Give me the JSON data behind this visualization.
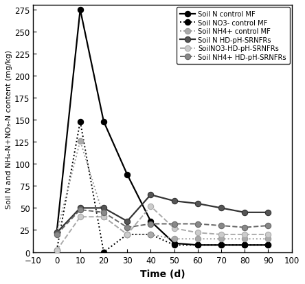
{
  "time_points": [
    0,
    10,
    20,
    30,
    40,
    50,
    60,
    70,
    80,
    90
  ],
  "series": {
    "soil_N_control_MF": {
      "label": "Soil N control MF",
      "color": "#000000",
      "linestyle": "-",
      "marker": "o",
      "markerfacecolor": "#000000",
      "markeredgecolor": "#000000",
      "linewidth": 1.6,
      "markersize": 6,
      "data": [
        22,
        275,
        148,
        88,
        35,
        10,
        8,
        8,
        8,
        8
      ]
    },
    "soil_NO3_control_MF": {
      "label": "Soil NO3- control MF",
      "color": "#000000",
      "linestyle": ":",
      "marker": "o",
      "markerfacecolor": "#000000",
      "markeredgecolor": "#000000",
      "linewidth": 1.4,
      "markersize": 6,
      "data": [
        2,
        148,
        0,
        20,
        20,
        8,
        8,
        8,
        8,
        8
      ]
    },
    "soil_NH4_control_MF": {
      "label": "Soil NH4+ control MF",
      "color": "#999999",
      "linestyle": ":",
      "marker": "o",
      "markerfacecolor": "#aaaaaa",
      "markeredgecolor": "#999999",
      "linewidth": 1.4,
      "markersize": 6,
      "data": [
        22,
        126,
        40,
        20,
        20,
        15,
        15,
        15,
        15,
        15
      ]
    },
    "soil_N_HD_pH_SRNFRs": {
      "label": "Soil N HD-pH-SRNFRs",
      "color": "#333333",
      "linestyle": "-",
      "marker": "o",
      "markerfacecolor": "#555555",
      "markeredgecolor": "#333333",
      "linewidth": 1.6,
      "markersize": 6,
      "data": [
        22,
        50,
        50,
        35,
        65,
        58,
        55,
        50,
        45,
        45
      ]
    },
    "soil_NO3_HD_pH_SRNFRs": {
      "label": "SoilNO3-HD-pH-SRNFRs",
      "color": "#aaaaaa",
      "linestyle": "--",
      "marker": "o",
      "markerfacecolor": "#cccccc",
      "markeredgecolor": "#aaaaaa",
      "linewidth": 1.4,
      "markersize": 6,
      "data": [
        2,
        40,
        40,
        20,
        52,
        27,
        22,
        20,
        20,
        20
      ]
    },
    "soil_NH4_HD_pH_SRNFRs": {
      "label": "Soil NH4+ HD-pH-SRNFRs",
      "color": "#666666",
      "linestyle": "--",
      "marker": "o",
      "markerfacecolor": "#888888",
      "markeredgecolor": "#666666",
      "linewidth": 1.4,
      "markersize": 6,
      "data": [
        20,
        48,
        45,
        28,
        32,
        32,
        32,
        30,
        28,
        30
      ]
    }
  },
  "xlim": [
    -10,
    100
  ],
  "ylim": [
    0,
    280
  ],
  "xticks": [
    -10,
    0,
    10,
    20,
    30,
    40,
    50,
    60,
    70,
    80,
    90,
    100
  ],
  "yticks": [
    0,
    25,
    50,
    75,
    100,
    125,
    150,
    175,
    200,
    225,
    250,
    275
  ],
  "xlabel": "Time (d)",
  "ylabel": "Soil N and NH₄-N+NO₃-N content (mg/kg)",
  "background_color": "#ffffff",
  "legend_fontsize": 7.2,
  "axis_label_fontsize": 10,
  "ylabel_fontsize": 8.0,
  "tick_fontsize": 8.5
}
